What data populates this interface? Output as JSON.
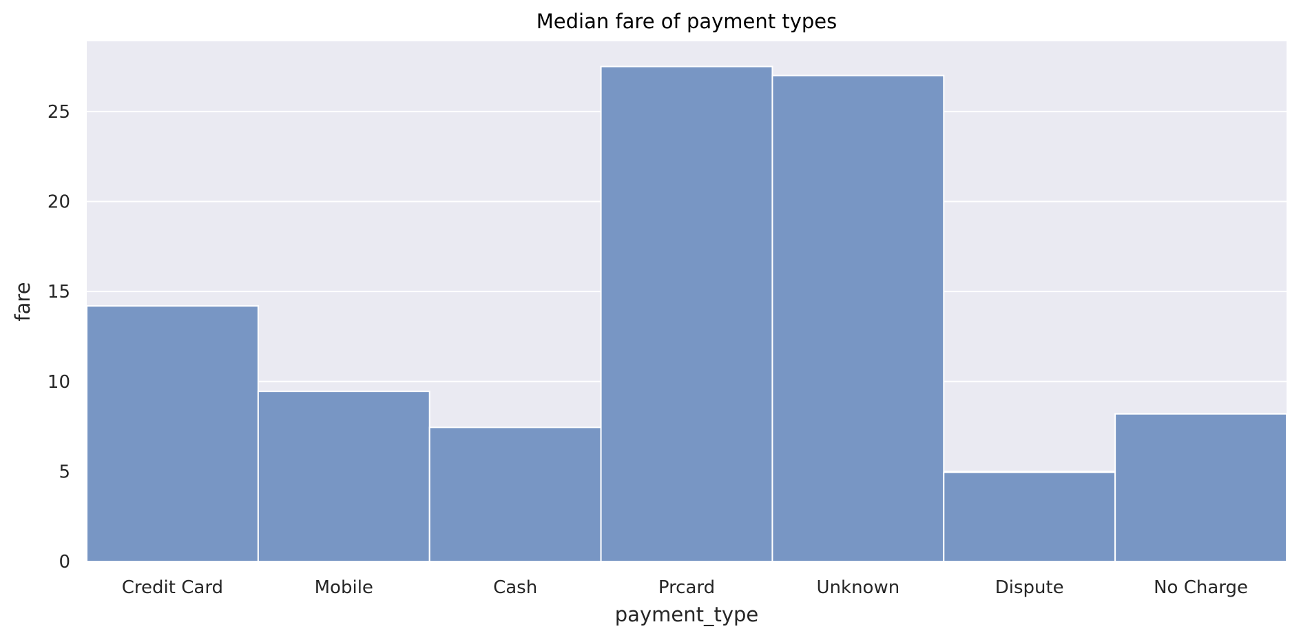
{
  "chart_data": {
    "type": "bar",
    "title": "Median fare of payment types",
    "xlabel": "payment_type",
    "ylabel": "fare",
    "categories": [
      "Credit Card",
      "Mobile",
      "Cash",
      "Prcard",
      "Unknown",
      "Dispute",
      "No Charge"
    ],
    "values": [
      14.2,
      9.45,
      7.45,
      27.5,
      27.0,
      4.95,
      8.2
    ],
    "ylim": [
      0,
      28.9
    ],
    "yticks": [
      0,
      5,
      10,
      15,
      20,
      25
    ],
    "ytick_labels": [
      "0",
      "5",
      "10",
      "15",
      "20",
      "25"
    ],
    "grid": true,
    "legend": "none",
    "colors": {
      "bar": "#7896c4",
      "plot_background": "#eaeaf2",
      "grid": "#ffffff",
      "bar_edge": "#ffffff"
    }
  }
}
